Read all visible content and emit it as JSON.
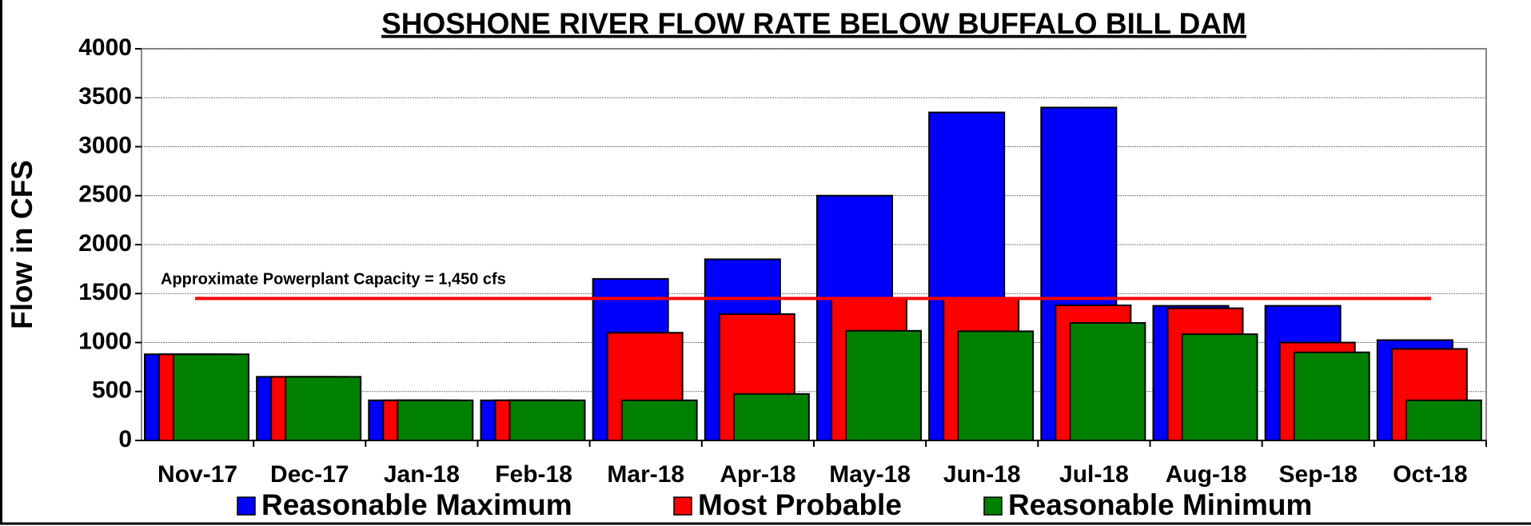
{
  "chart_data": {
    "type": "bar",
    "title": "SHOSHONE RIVER FLOW RATE BELOW BUFFALO BILL DAM",
    "y_label": "Flow in CFS",
    "categories": [
      "Nov-17",
      "Dec-17",
      "Jan-18",
      "Feb-18",
      "Mar-18",
      "Apr-18",
      "May-18",
      "Jun-18",
      "Jul-18",
      "Aug-18",
      "Sep-18",
      "Oct-18"
    ],
    "series": [
      {
        "name": "Reasonable Maximum",
        "color": "#0000ff",
        "values": [
          880,
          650,
          410,
          410,
          1650,
          1850,
          2500,
          3350,
          3400,
          1375,
          1375,
          1025
        ]
      },
      {
        "name": "Most Probable",
        "color": "#ff0000",
        "values": [
          880,
          650,
          410,
          410,
          1100,
          1290,
          1450,
          1450,
          1380,
          1350,
          1000,
          935
        ]
      },
      {
        "name": "Reasonable Minimum",
        "color": "#008000",
        "values": [
          880,
          650,
          410,
          410,
          410,
          475,
          1120,
          1115,
          1200,
          1085,
          900,
          410
        ]
      }
    ],
    "ylim": [
      0,
      4000
    ],
    "yticks": [
      0,
      500,
      1000,
      1500,
      2000,
      2500,
      3000,
      3500,
      4000
    ],
    "grid": true,
    "legend": "bottom",
    "reference_line": {
      "value": 1450,
      "color": "#ff0000",
      "label": "Approximate Powerplant Capacity = 1,450 cfs"
    }
  }
}
